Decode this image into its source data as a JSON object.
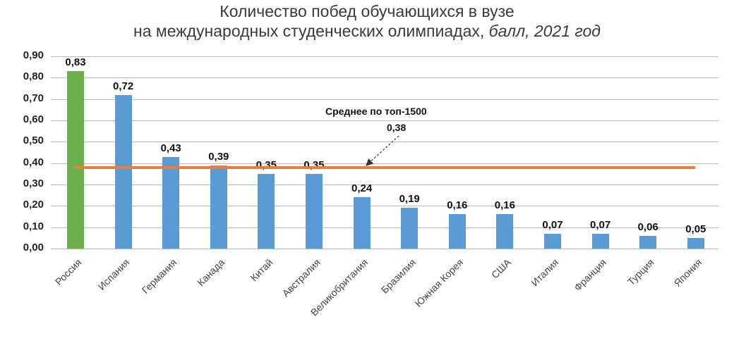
{
  "chart_data": {
    "type": "bar",
    "title": "Количество побед обучающихся в вузе на международных студенческих олимпиадах, балл, 2021 год",
    "title_line1": "Количество побед обучающихся в вузе",
    "title_line2_main": "на международных студенческих олимпиадах,",
    "title_line2_italic": "балл, 2021 год",
    "xlabel": "",
    "ylabel": "",
    "ylim": [
      0,
      0.9
    ],
    "yticks": [
      "0,00",
      "0,10",
      "0,20",
      "0,30",
      "0,40",
      "0,50",
      "0,60",
      "0,70",
      "0,80",
      "0,90"
    ],
    "grid": true,
    "categories": [
      "Россия",
      "Испания",
      "Германия",
      "Канада",
      "Китай",
      "Австралия",
      "Великобритания",
      "Бразилия",
      "Южная Корея",
      "США",
      "Италия",
      "Франция",
      "Турция",
      "Япония"
    ],
    "values": [
      0.83,
      0.72,
      0.43,
      0.39,
      0.35,
      0.35,
      0.24,
      0.19,
      0.16,
      0.16,
      0.07,
      0.07,
      0.06,
      0.05
    ],
    "value_labels": [
      "0,83",
      "0,72",
      "0,43",
      "0,39",
      "0,35",
      "0,35",
      "0,24",
      "0,19",
      "0,16",
      "0,16",
      "0,07",
      "0,07",
      "0,06",
      "0,05"
    ],
    "highlight_index": 0,
    "colors": {
      "highlight": "#6ab04c",
      "default": "#5b9bd5",
      "average_line": "#ed7d31",
      "grid": "#b8b8b8"
    },
    "reference_line": {
      "label": "Среднее по топ-1500",
      "value": 0.38,
      "value_label": "0,38"
    }
  }
}
